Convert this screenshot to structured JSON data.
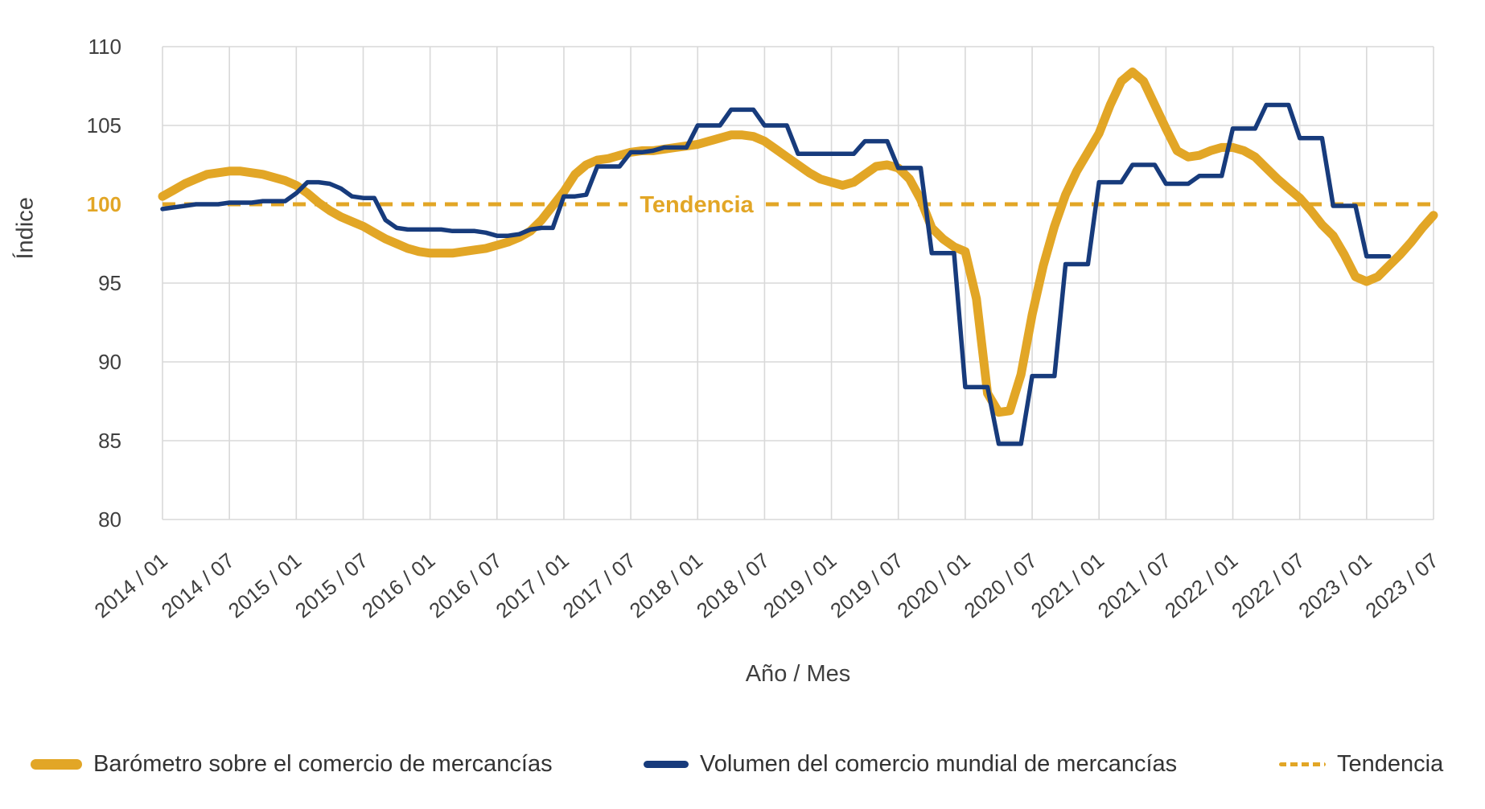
{
  "chart_data": {
    "type": "line",
    "title": "",
    "xlabel": "Año / Mes",
    "ylabel": "Índice",
    "ylim": [
      80,
      110
    ],
    "yticks": [
      80,
      85,
      90,
      95,
      100,
      105,
      110
    ],
    "grid": true,
    "legend_position": "bottom",
    "months_total": 115,
    "x_first_month": "2014/01",
    "x_last_month": "2023/07",
    "x_tick_every_months": 6,
    "x_tick_labels": [
      "2014 / 01",
      "2014 / 07",
      "2015 / 01",
      "2015 / 07",
      "2016 / 01",
      "2016 / 07",
      "2017 / 01",
      "2017 / 07",
      "2018 / 01",
      "2018 / 07",
      "2019 / 01",
      "2019 / 07",
      "2020 / 01",
      "2020 / 07",
      "2021 / 01",
      "2021 / 07",
      "2022 / 01",
      "2022 / 07",
      "2023 / 01",
      "2023 / 07"
    ],
    "trend": {
      "label": "Tendencia",
      "value": 100
    },
    "series": [
      {
        "name": "Barómetro sobre el comercio de mercancías",
        "color": "#E2A626",
        "stroke_width": 11,
        "values": [
          100.5,
          100.9,
          101.3,
          101.6,
          101.9,
          102.0,
          102.1,
          102.1,
          102.0,
          101.9,
          101.7,
          101.5,
          101.2,
          100.7,
          100.1,
          99.6,
          99.2,
          98.9,
          98.6,
          98.2,
          97.8,
          97.5,
          97.2,
          97.0,
          96.9,
          96.9,
          96.9,
          97.0,
          97.1,
          97.2,
          97.4,
          97.6,
          97.9,
          98.3,
          99.0,
          99.9,
          100.8,
          101.9,
          102.5,
          102.8,
          102.9,
          103.1,
          103.3,
          103.4,
          103.4,
          103.5,
          103.6,
          103.7,
          103.8,
          104.0,
          104.2,
          104.4,
          104.4,
          104.3,
          104.0,
          103.5,
          103.0,
          102.5,
          102.0,
          101.6,
          101.4,
          101.2,
          101.4,
          101.9,
          102.4,
          102.5,
          102.3,
          101.6,
          100.3,
          98.5,
          97.8,
          97.3,
          97.0,
          94.0,
          88.0,
          86.8,
          86.9,
          89.2,
          93.0,
          96.1,
          98.6,
          100.6,
          102.1,
          103.3,
          104.5,
          106.3,
          107.8,
          108.4,
          107.8,
          106.3,
          104.8,
          103.4,
          103.0,
          103.1,
          103.4,
          103.6,
          103.6,
          103.4,
          103.0,
          102.3,
          101.6,
          101.0,
          100.4,
          99.6,
          98.7,
          98.0,
          96.8,
          95.4,
          95.1,
          95.4,
          96.1,
          96.8,
          97.6,
          98.5,
          99.3
        ]
      },
      {
        "name": "Volumen del comercio mundial de mercancías",
        "color": "#173B7C",
        "stroke_width": 5.5,
        "values": [
          99.7,
          99.8,
          99.9,
          100.0,
          100.0,
          100.0,
          100.1,
          100.1,
          100.1,
          100.2,
          100.2,
          100.2,
          100.7,
          101.4,
          101.4,
          101.3,
          101.0,
          100.5,
          100.4,
          100.4,
          99.0,
          98.5,
          98.4,
          98.4,
          98.4,
          98.4,
          98.3,
          98.3,
          98.3,
          98.2,
          98.0,
          98.0,
          98.1,
          98.4,
          98.5,
          98.5,
          100.5,
          100.5,
          100.6,
          102.4,
          102.4,
          102.4,
          103.3,
          103.3,
          103.4,
          103.6,
          103.6,
          103.6,
          105.0,
          105.0,
          105.0,
          106.0,
          106.0,
          106.0,
          105.0,
          105.0,
          105.0,
          103.2,
          103.2,
          103.2,
          103.2,
          103.2,
          103.2,
          104.0,
          104.0,
          104.0,
          102.3,
          102.3,
          102.3,
          96.9,
          96.9,
          96.9,
          88.4,
          88.4,
          88.4,
          84.8,
          84.8,
          84.8,
          89.1,
          89.1,
          89.1,
          96.2,
          96.2,
          96.2,
          101.4,
          101.4,
          101.4,
          102.5,
          102.5,
          102.5,
          101.3,
          101.3,
          101.3,
          101.8,
          101.8,
          101.8,
          104.8,
          104.8,
          104.8,
          106.3,
          106.3,
          106.3,
          104.2,
          104.2,
          104.2,
          99.9,
          99.9,
          99.9,
          96.7,
          96.7,
          96.7
        ]
      },
      {
        "name": "Tendencia",
        "color": "#E2A626",
        "stroke_width": 5,
        "dashed": true,
        "values": []
      }
    ],
    "annotation": {
      "text": "Tendencia",
      "x": 866,
      "y": 100
    }
  },
  "axes": {
    "ylabel": "Índice",
    "xlabel": "Año / Mes",
    "highlighted_ytick": "100"
  },
  "colors": {
    "gold": "#E2A626",
    "navy": "#173B7C",
    "grid": "#D9D9D9",
    "tick_text": "#3F3F3F",
    "legend_text": "#333333",
    "background": "#FFFFFF"
  },
  "legend": {
    "barometer_label": "Barómetro sobre el comercio de mercancías",
    "volume_label": "Volumen del comercio mundial de mercancías",
    "trend_label": "Tendencia"
  }
}
